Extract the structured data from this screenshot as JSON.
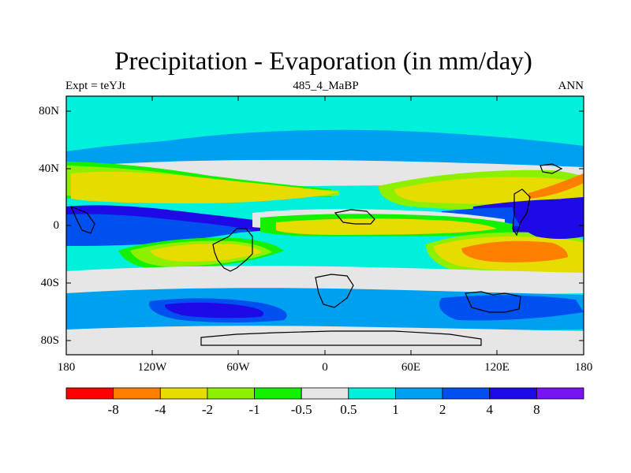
{
  "title": "Precipitation - Evaporation (in mm/day)",
  "subtitle_left": "Expt = teYJt",
  "subtitle_center": "485_4_MaBP",
  "subtitle_right": "ANN",
  "y_ticks": [
    "80N",
    "40N",
    "0",
    "40S",
    "80S"
  ],
  "x_ticks": [
    "180",
    "120W",
    "60W",
    "0",
    "60E",
    "120E",
    "180"
  ],
  "colorbar": {
    "labels": [
      "-8",
      "-4",
      "-2",
      "-1",
      "-0.5",
      "0.5",
      "1",
      "2",
      "4",
      "8"
    ],
    "colors": [
      "#ff0000",
      "#ff8000",
      "#e6dc00",
      "#8cf000",
      "#14f000",
      "#e6e6e6",
      "#00f0dc",
      "#00a0f0",
      "#0050f0",
      "#1e0ae6",
      "#7814f0"
    ]
  },
  "colors": {
    "cyan": "#00f0dc",
    "lightblue": "#00a0f0",
    "blue": "#0050f0",
    "darkblue": "#1e0ae6",
    "gray": "#e6e6e6",
    "green": "#14f000",
    "yellowgreen": "#8cf000",
    "yellow": "#e6dc00",
    "orange": "#ff8000"
  }
}
